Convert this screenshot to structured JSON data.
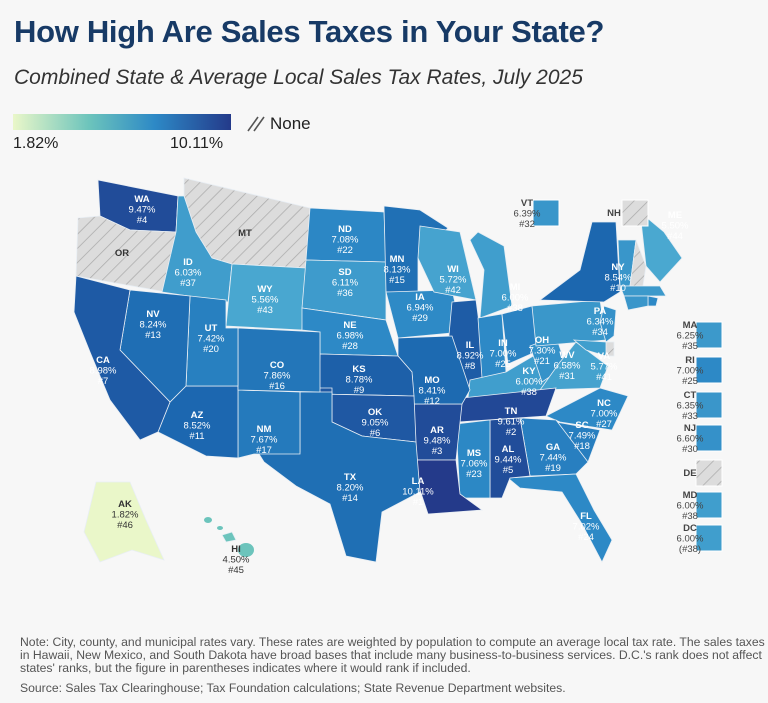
{
  "title": "How High Are Sales Taxes in Your State?",
  "subtitle": "Combined State & Average Local Sales Tax Rates, July 2025",
  "legend": {
    "min_label": "1.82%",
    "max_label": "10.11%",
    "none_label": "None",
    "min_value": 1.82,
    "max_value": 10.11,
    "colors": [
      "#eaf7c9",
      "#6cc4bc",
      "#4aa8d0",
      "#2d89c6",
      "#1c68b0",
      "#243a8a"
    ],
    "none_color": "#dcdcdc"
  },
  "states": [
    {
      "abbr": "WA",
      "rate": "9.47%",
      "rank": "#4",
      "value": 9.47
    },
    {
      "abbr": "OR",
      "rate": null,
      "rank": null,
      "value": null
    },
    {
      "abbr": "MT",
      "rate": null,
      "rank": null,
      "value": null
    },
    {
      "abbr": "ID",
      "rate": "6.03%",
      "rank": "#37",
      "value": 6.03
    },
    {
      "abbr": "WY",
      "rate": "5.56%",
      "rank": "#43",
      "value": 5.56
    },
    {
      "abbr": "ND",
      "rate": "7.08%",
      "rank": "#22",
      "value": 7.08
    },
    {
      "abbr": "SD",
      "rate": "6.11%",
      "rank": "#36",
      "value": 6.11
    },
    {
      "abbr": "NE",
      "rate": "6.98%",
      "rank": "#28",
      "value": 6.98
    },
    {
      "abbr": "MN",
      "rate": "8.13%",
      "rank": "#15",
      "value": 8.13
    },
    {
      "abbr": "IA",
      "rate": "6.94%",
      "rank": "#29",
      "value": 6.94
    },
    {
      "abbr": "WI",
      "rate": "5.72%",
      "rank": "#42",
      "value": 5.72
    },
    {
      "abbr": "MI",
      "rate": "6.00%",
      "rank": "#38",
      "value": 6.0
    },
    {
      "abbr": "IL",
      "rate": "8.92%",
      "rank": "#8",
      "value": 8.92
    },
    {
      "abbr": "IN",
      "rate": "7.00%",
      "rank": "#25",
      "value": 7.0
    },
    {
      "abbr": "OH",
      "rate": "7.30%",
      "rank": "#21",
      "value": 7.3
    },
    {
      "abbr": "KY",
      "rate": "6.00%",
      "rank": "#38",
      "value": 6.0
    },
    {
      "abbr": "WV",
      "rate": "6.58%",
      "rank": "#31",
      "value": 6.58
    },
    {
      "abbr": "VA",
      "rate": "5.77%",
      "rank": "#41",
      "value": 5.77
    },
    {
      "abbr": "PA",
      "rate": "6.34%",
      "rank": "#34",
      "value": 6.34
    },
    {
      "abbr": "NY",
      "rate": "8.54%",
      "rank": "#10",
      "value": 8.54
    },
    {
      "abbr": "NC",
      "rate": "7.00%",
      "rank": "#27",
      "value": 7.0
    },
    {
      "abbr": "SC",
      "rate": "7.49%",
      "rank": "#18",
      "value": 7.49
    },
    {
      "abbr": "GA",
      "rate": "7.44%",
      "rank": "#19",
      "value": 7.44
    },
    {
      "abbr": "FL",
      "rate": "7.02%",
      "rank": "#24",
      "value": 7.02
    },
    {
      "abbr": "AL",
      "rate": "9.44%",
      "rank": "#5",
      "value": 9.44
    },
    {
      "abbr": "MS",
      "rate": "7.06%",
      "rank": "#23",
      "value": 7.06
    },
    {
      "abbr": "TN",
      "rate": "9.61%",
      "rank": "#2",
      "value": 9.61
    },
    {
      "abbr": "AR",
      "rate": "9.48%",
      "rank": "#3",
      "value": 9.48
    },
    {
      "abbr": "LA",
      "rate": "10.11%",
      "rank": "#1",
      "value": 10.11
    },
    {
      "abbr": "MO",
      "rate": "8.41%",
      "rank": "#12",
      "value": 8.41
    },
    {
      "abbr": "KS",
      "rate": "8.78%",
      "rank": "#9",
      "value": 8.78
    },
    {
      "abbr": "OK",
      "rate": "9.05%",
      "rank": "#6",
      "value": 9.05
    },
    {
      "abbr": "TX",
      "rate": "8.20%",
      "rank": "#14",
      "value": 8.2
    },
    {
      "abbr": "NM",
      "rate": "7.67%",
      "rank": "#17",
      "value": 7.67
    },
    {
      "abbr": "AZ",
      "rate": "8.52%",
      "rank": "#11",
      "value": 8.52
    },
    {
      "abbr": "CO",
      "rate": "7.86%",
      "rank": "#16",
      "value": 7.86
    },
    {
      "abbr": "UT",
      "rate": "7.42%",
      "rank": "#20",
      "value": 7.42
    },
    {
      "abbr": "NV",
      "rate": "8.24%",
      "rank": "#13",
      "value": 8.24
    },
    {
      "abbr": "CA",
      "rate": "8.98%",
      "rank": "#7",
      "value": 8.98
    },
    {
      "abbr": "AK",
      "rate": "1.82%",
      "rank": "#46",
      "value": 1.82
    },
    {
      "abbr": "HI",
      "rate": "4.50%",
      "rank": "#45",
      "value": 4.5
    },
    {
      "abbr": "ME",
      "rate": "5.50%",
      "rank": "#44",
      "value": 5.5
    }
  ],
  "boxed_states": [
    {
      "abbr": "VT",
      "rate": "6.39%",
      "rank": "#32",
      "value": 6.39
    },
    {
      "abbr": "NH",
      "rate": null,
      "rank": null,
      "value": null
    },
    {
      "abbr": "MA",
      "rate": "6.25%",
      "rank": "#35",
      "value": 6.25
    },
    {
      "abbr": "RI",
      "rate": "7.00%",
      "rank": "#25",
      "value": 7.0
    },
    {
      "abbr": "CT",
      "rate": "6.35%",
      "rank": "#33",
      "value": 6.35
    },
    {
      "abbr": "NJ",
      "rate": "6.60%",
      "rank": "#30",
      "value": 6.6
    },
    {
      "abbr": "DE",
      "rate": null,
      "rank": null,
      "value": null
    },
    {
      "abbr": "MD",
      "rate": "6.00%",
      "rank": "#38",
      "value": 6.0
    },
    {
      "abbr": "DC",
      "rate": "6.00%",
      "rank": "(#38)",
      "value": 6.0
    }
  ],
  "note": "Note: City, county, and municipal rates vary. These rates are weighted by population to compute an average local tax rate. The sales taxes in Hawaii, New Mexico, and South Dakota have broad bases that include many business-to-business services. D.C.'s rank does not affect states' ranks, but the figure in parentheses indicates where it would rank if included.",
  "source": "Source: Sales Tax Clearinghouse; Tax Foundation calculations; State Revenue Department websites."
}
